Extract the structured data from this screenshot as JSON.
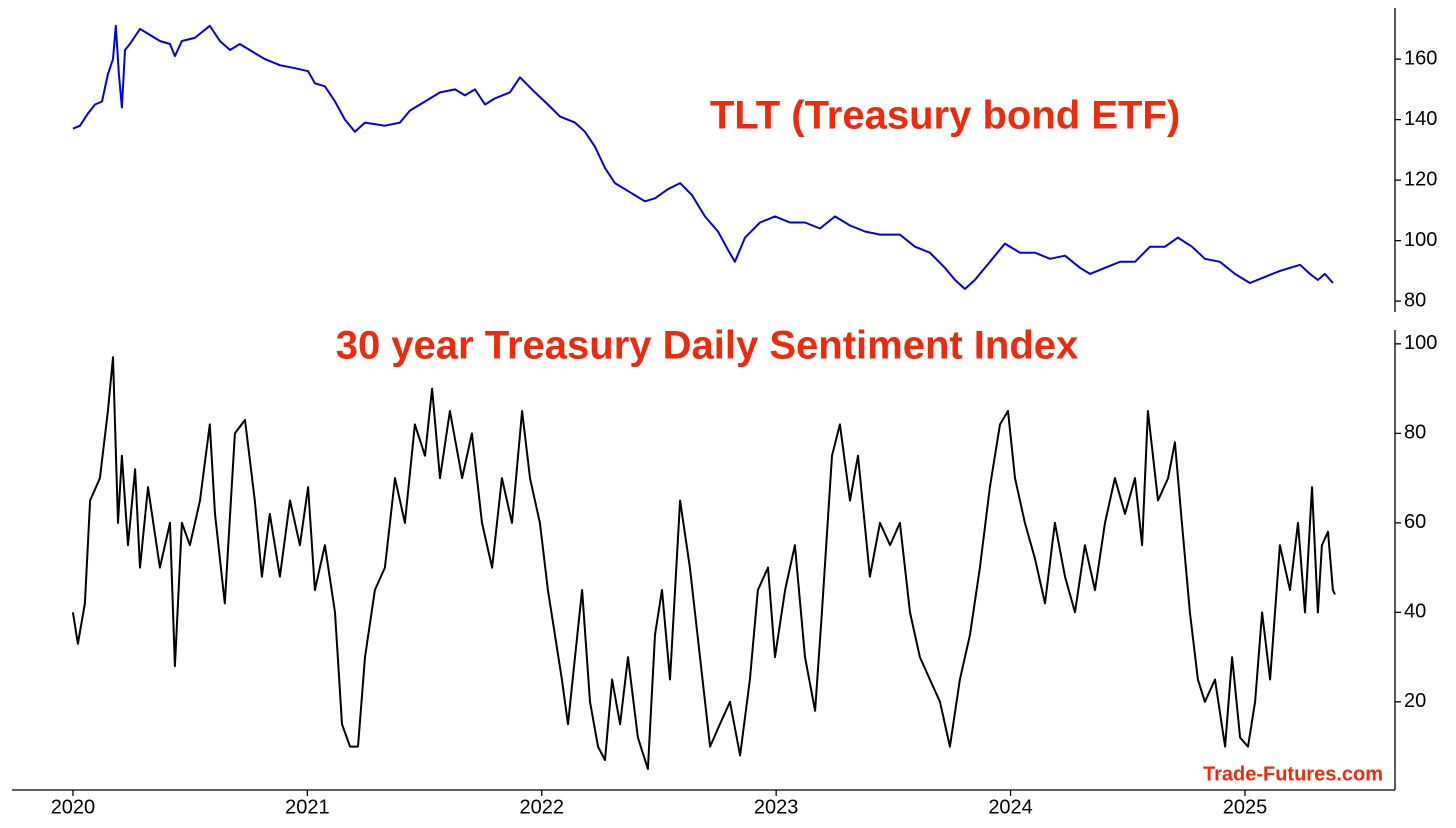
{
  "chart_data": [
    {
      "type": "line",
      "annotation": "TLT (Treasury bond ETF)",
      "x": [
        2020.0,
        2020.03,
        2020.064,
        2020.094,
        2020.124,
        2020.149,
        2020.171,
        2020.183,
        2020.196,
        2020.209,
        2020.222,
        2020.243,
        2020.286,
        2020.328,
        2020.371,
        2020.414,
        2020.435,
        2020.465,
        2020.52,
        2020.584,
        2020.627,
        2020.67,
        2020.712,
        2020.776,
        2020.819,
        2020.883,
        2020.947,
        2021.003,
        2021.032,
        2021.075,
        2021.118,
        2021.16,
        2021.203,
        2021.246,
        2021.331,
        2021.395,
        2021.438,
        2021.502,
        2021.566,
        2021.63,
        2021.672,
        2021.715,
        2021.758,
        2021.8,
        2021.864,
        2021.907,
        2021.971,
        2022.026,
        2022.078,
        2022.142,
        2022.184,
        2022.227,
        2022.27,
        2022.312,
        2022.376,
        2022.44,
        2022.483,
        2022.538,
        2022.59,
        2022.641,
        2022.696,
        2022.752,
        2022.794,
        2022.824,
        2022.867,
        2022.931,
        2022.995,
        2023.059,
        2023.123,
        2023.187,
        2023.251,
        2023.315,
        2023.379,
        2023.443,
        2023.528,
        2023.592,
        2023.656,
        2023.72,
        2023.763,
        2023.805,
        2023.848,
        2023.912,
        2023.976,
        2024.04,
        2024.104,
        2024.168,
        2024.232,
        2024.296,
        2024.339,
        2024.403,
        2024.467,
        2024.531,
        2024.595,
        2024.659,
        2024.714,
        2024.774,
        2024.829,
        2024.893,
        2024.957,
        2025.021,
        2025.085,
        2025.149,
        2025.235,
        2025.277,
        2025.311,
        2025.341,
        2025.375
      ],
      "series": [
        {
          "color": "#0000e0",
          "values": [
            137,
            138,
            142,
            145,
            146,
            155,
            160,
            171,
            155,
            144,
            163,
            165,
            170,
            168,
            166,
            165,
            161,
            166,
            167,
            171,
            166,
            163,
            165,
            162,
            160,
            158,
            157,
            156,
            152,
            151,
            146,
            140,
            136,
            139,
            138,
            139,
            143,
            146,
            149,
            150,
            148,
            150,
            145,
            147,
            149,
            154,
            149,
            145,
            141,
            139,
            136,
            131,
            124,
            119,
            116,
            113,
            114,
            117,
            119,
            115,
            108,
            103,
            97,
            93,
            101,
            106,
            108,
            106,
            106,
            104,
            108,
            105,
            103,
            102,
            102,
            98,
            96,
            91,
            87,
            84,
            87,
            93,
            99,
            96,
            96,
            94,
            95,
            91,
            89,
            91,
            93,
            93,
            98,
            98,
            101,
            98,
            94,
            93,
            89,
            86,
            88,
            90,
            92,
            89,
            87,
            89,
            86
          ]
        }
      ],
      "xlim": [
        2019.74,
        2025.64
      ],
      "ylim": [
        76.4,
        176.9
      ],
      "yticks": [
        80,
        100,
        120,
        140,
        160
      ]
    },
    {
      "type": "line",
      "annotation": "30 year Treasury Daily Sentiment Index",
      "x": [
        2020.0,
        2020.021,
        2020.051,
        2020.073,
        2020.115,
        2020.149,
        2020.171,
        2020.192,
        2020.209,
        2020.235,
        2020.265,
        2020.286,
        2020.32,
        2020.371,
        2020.414,
        2020.435,
        2020.465,
        2020.499,
        2020.542,
        2020.584,
        2020.606,
        2020.648,
        2020.691,
        2020.734,
        2020.776,
        2020.806,
        2020.84,
        2020.883,
        2020.926,
        2020.968,
        2021.003,
        2021.032,
        2021.075,
        2021.118,
        2021.148,
        2021.182,
        2021.216,
        2021.246,
        2021.288,
        2021.331,
        2021.374,
        2021.416,
        2021.459,
        2021.502,
        2021.532,
        2021.566,
        2021.608,
        2021.66,
        2021.702,
        2021.745,
        2021.788,
        2021.83,
        2021.873,
        2021.916,
        2021.95,
        2021.992,
        2022.026,
        2022.056,
        2022.086,
        2022.112,
        2022.142,
        2022.172,
        2022.206,
        2022.24,
        2022.27,
        2022.3,
        2022.334,
        2022.368,
        2022.41,
        2022.453,
        2022.483,
        2022.513,
        2022.547,
        2022.59,
        2022.632,
        2022.675,
        2022.718,
        2022.76,
        2022.803,
        2022.846,
        2022.888,
        2022.922,
        2022.965,
        2022.995,
        2023.038,
        2023.08,
        2023.123,
        2023.166,
        2023.195,
        2023.238,
        2023.272,
        2023.315,
        2023.349,
        2023.4,
        2023.443,
        2023.486,
        2023.528,
        2023.571,
        2023.613,
        2023.656,
        2023.699,
        2023.741,
        2023.784,
        2023.827,
        2023.869,
        2023.912,
        2023.955,
        2023.989,
        2024.019,
        2024.061,
        2024.104,
        2024.147,
        2024.189,
        2024.232,
        2024.275,
        2024.317,
        2024.36,
        2024.403,
        2024.445,
        2024.488,
        2024.531,
        2024.561,
        2024.586,
        2024.629,
        2024.672,
        2024.701,
        2024.731,
        2024.765,
        2024.799,
        2024.829,
        2024.872,
        2024.915,
        2024.945,
        2024.979,
        2025.013,
        2025.043,
        2025.073,
        2025.107,
        2025.149,
        2025.192,
        2025.226,
        2025.256,
        2025.286,
        2025.311,
        2025.328,
        2025.354,
        2025.375,
        2025.384
      ],
      "series": [
        {
          "color": "#000000",
          "values": [
            40,
            33,
            42,
            65,
            70,
            85,
            97,
            60,
            75,
            55,
            72,
            50,
            68,
            50,
            60,
            28,
            60,
            55,
            65,
            82,
            62,
            42,
            80,
            83,
            65,
            48,
            62,
            48,
            65,
            55,
            68,
            45,
            55,
            40,
            15,
            10,
            10,
            30,
            45,
            50,
            70,
            60,
            82,
            75,
            90,
            70,
            85,
            70,
            80,
            60,
            50,
            70,
            60,
            85,
            70,
            60,
            45,
            35,
            25,
            15,
            30,
            45,
            20,
            10,
            7,
            25,
            15,
            30,
            12,
            5,
            35,
            45,
            25,
            65,
            50,
            30,
            10,
            15,
            20,
            8,
            25,
            45,
            50,
            30,
            45,
            55,
            30,
            18,
            40,
            75,
            82,
            65,
            75,
            48,
            60,
            55,
            60,
            40,
            30,
            25,
            20,
            10,
            25,
            35,
            50,
            68,
            82,
            85,
            70,
            60,
            52,
            42,
            60,
            48,
            40,
            55,
            45,
            60,
            70,
            62,
            70,
            55,
            85,
            65,
            70,
            78,
            60,
            40,
            25,
            20,
            25,
            10,
            30,
            12,
            10,
            20,
            40,
            25,
            55,
            45,
            60,
            40,
            68,
            40,
            55,
            58,
            45,
            44
          ]
        }
      ],
      "xlim": [
        2019.74,
        2025.64
      ],
      "ylim": [
        0.3,
        103.1
      ],
      "yticks": [
        20,
        40,
        60,
        80,
        100
      ],
      "xticks": [
        2020,
        2021,
        2022,
        2023,
        2024,
        2025
      ]
    }
  ],
  "watermark": "Trade-Futures.com"
}
